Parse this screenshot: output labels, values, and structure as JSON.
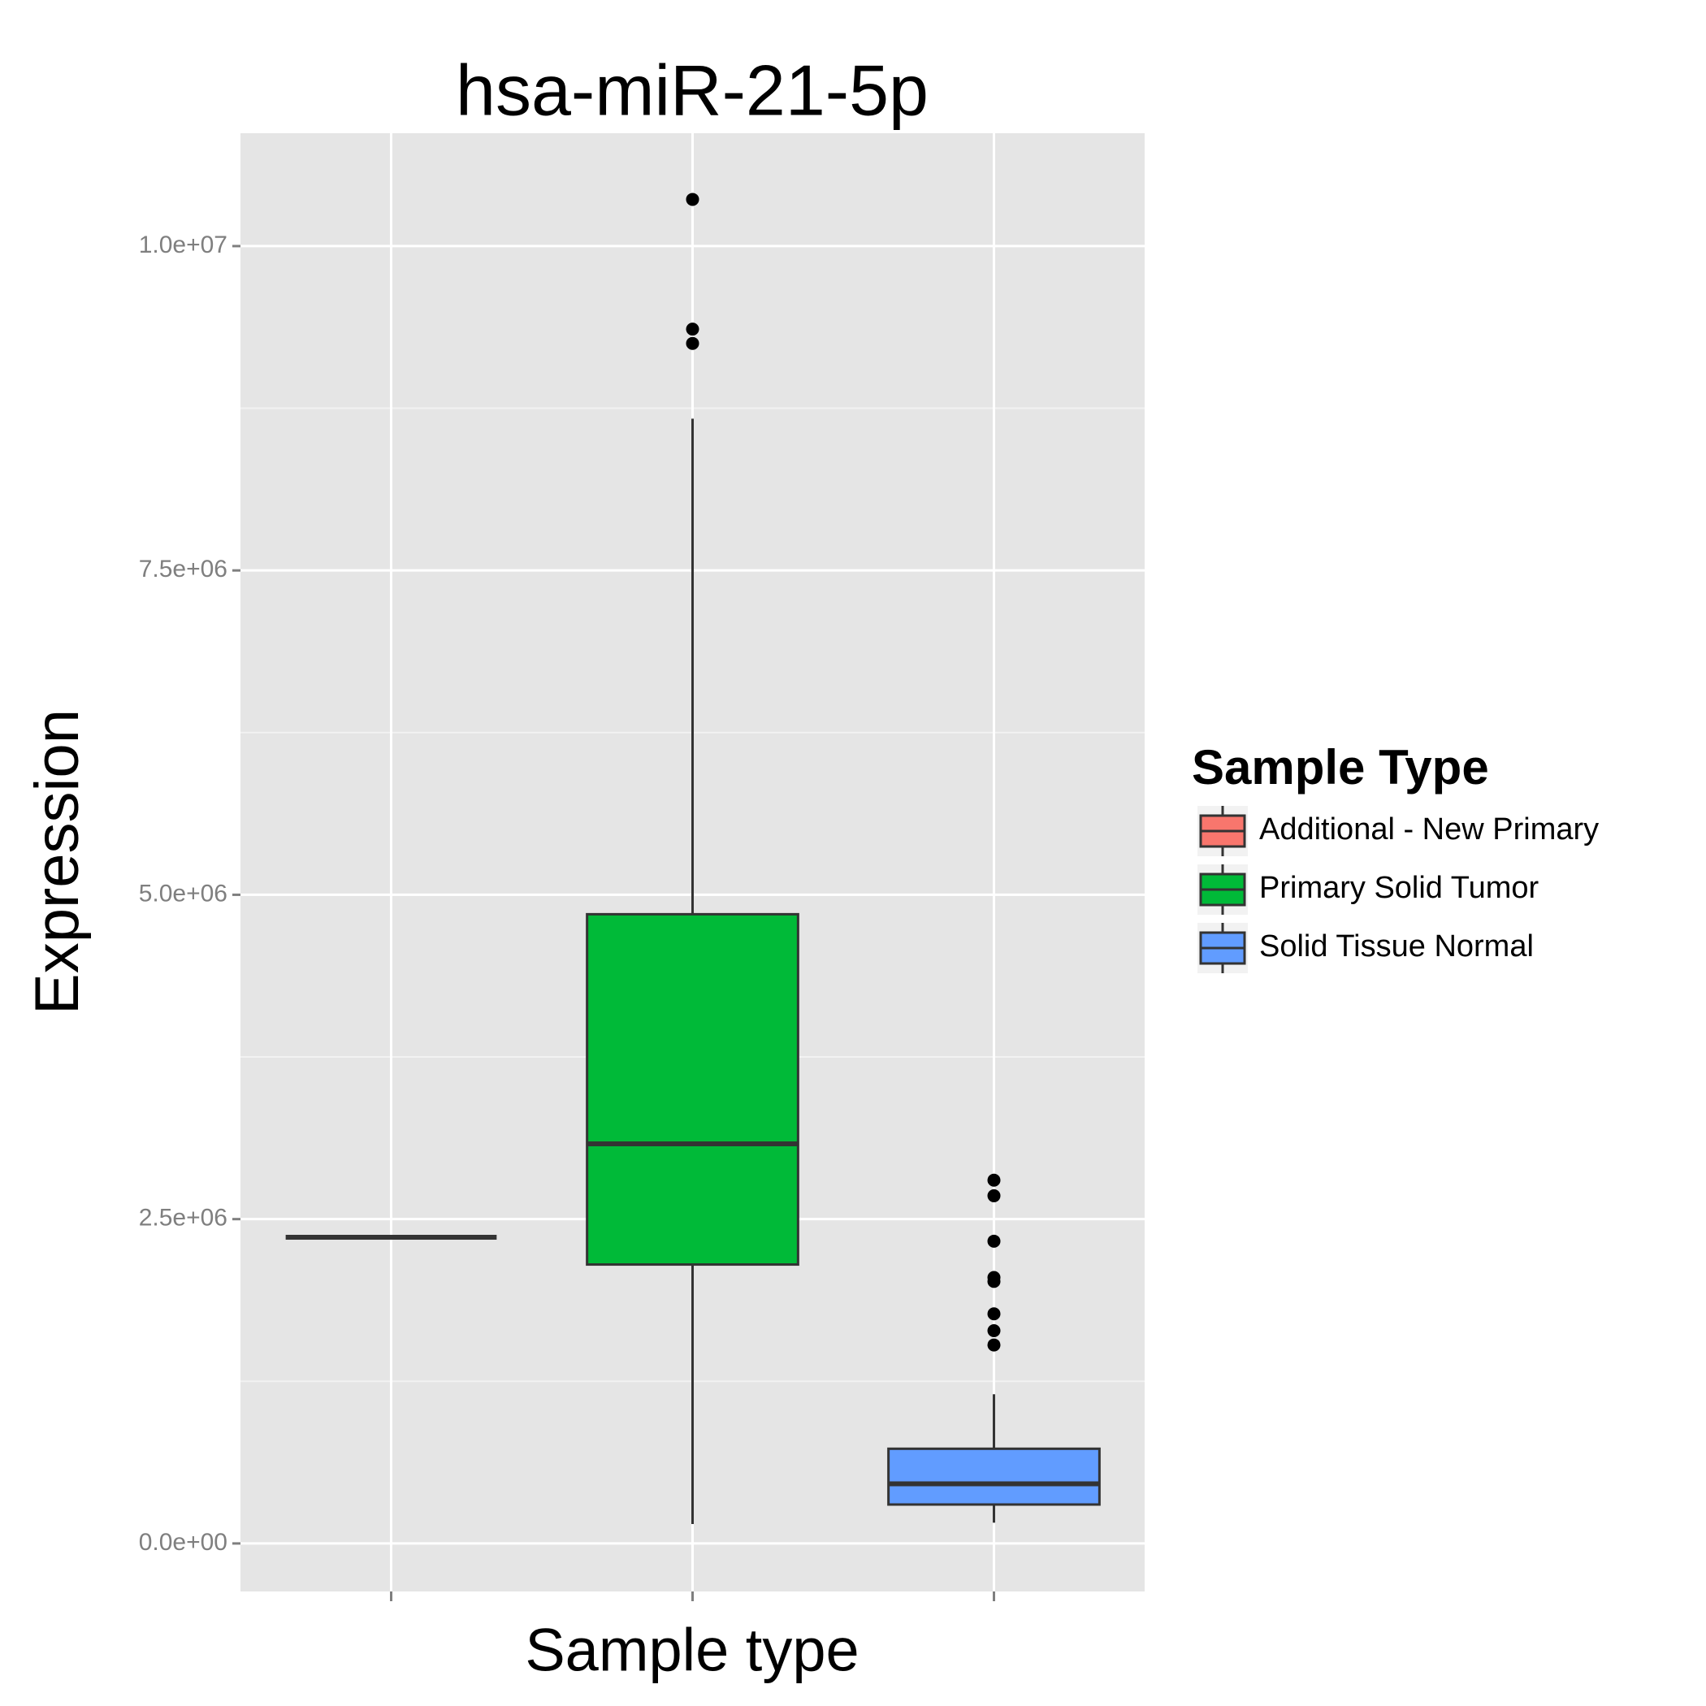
{
  "chart_data": {
    "type": "box",
    "title": "hsa-miR-21-5p",
    "x_label": "Sample type",
    "y_label": "Expression",
    "legend_title": "Sample Type",
    "legend_position": "right",
    "grid": true,
    "categories": [
      null,
      null,
      null
    ],
    "series": [
      {
        "name": "Additional - New Primary",
        "color": "#F8766D",
        "min": 2360000,
        "q1": 2360000,
        "median": 2360000,
        "q3": 2360000,
        "max": 2360000,
        "outliers": []
      },
      {
        "name": "Primary Solid Tumor",
        "color": "#00BA38",
        "min": 150000,
        "q1": 2150000,
        "median": 3080000,
        "q3": 4850000,
        "max": 8670000,
        "outliers": [
          10360000,
          9360000,
          9250000
        ]
      },
      {
        "name": "Solid Tissue Normal",
        "color": "#619CFF",
        "min": 160000,
        "q1": 300000,
        "median": 460000,
        "q3": 730000,
        "max": 1150000,
        "outliers": [
          2800000,
          2680000,
          2330000,
          2050000,
          2020000,
          1770000,
          1640000,
          1530000
        ]
      }
    ],
    "ylim": [
      -370000,
      10870000
    ],
    "yticks": [
      {
        "value": 0,
        "label": "0.0e+00"
      },
      {
        "value": 2500000,
        "label": "2.5e+06"
      },
      {
        "value": 5000000,
        "label": "5.0e+06"
      },
      {
        "value": 7500000,
        "label": "7.5e+06"
      },
      {
        "value": 10000000,
        "label": "1.0e+07"
      }
    ]
  }
}
